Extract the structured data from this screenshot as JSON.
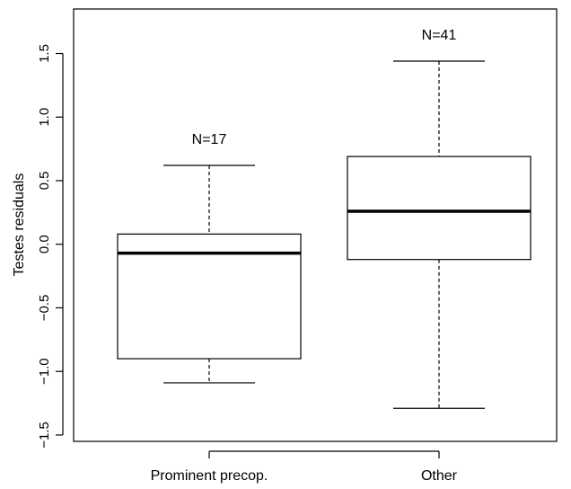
{
  "chart_data": {
    "type": "boxplot",
    "title": "",
    "xlabel": "",
    "ylabel": "Testes residuals",
    "ylim": [
      -1.55,
      1.85
    ],
    "yticks": [
      -1.5,
      -1.0,
      -0.5,
      0.0,
      0.5,
      1.0,
      1.5
    ],
    "ytick_labels": [
      "−1.5",
      "−1.0",
      "−0.5",
      "0.0",
      "0.5",
      "1.0",
      "1.5"
    ],
    "categories": [
      "Prominent precop.",
      "Other"
    ],
    "grid": false,
    "boxes": [
      {
        "category": "Prominent precop.",
        "n_label": "N=17",
        "whisker_low": -1.09,
        "q1": -0.9,
        "median": -0.07,
        "q3": 0.08,
        "whisker_high": 0.62
      },
      {
        "category": "Other",
        "n_label": "N=41",
        "whisker_low": -1.29,
        "q1": -0.12,
        "median": 0.26,
        "q3": 0.69,
        "whisker_high": 1.44
      }
    ]
  },
  "colors": {
    "line": "#000000",
    "box_fill": "#ffffff",
    "background": "#ffffff"
  }
}
